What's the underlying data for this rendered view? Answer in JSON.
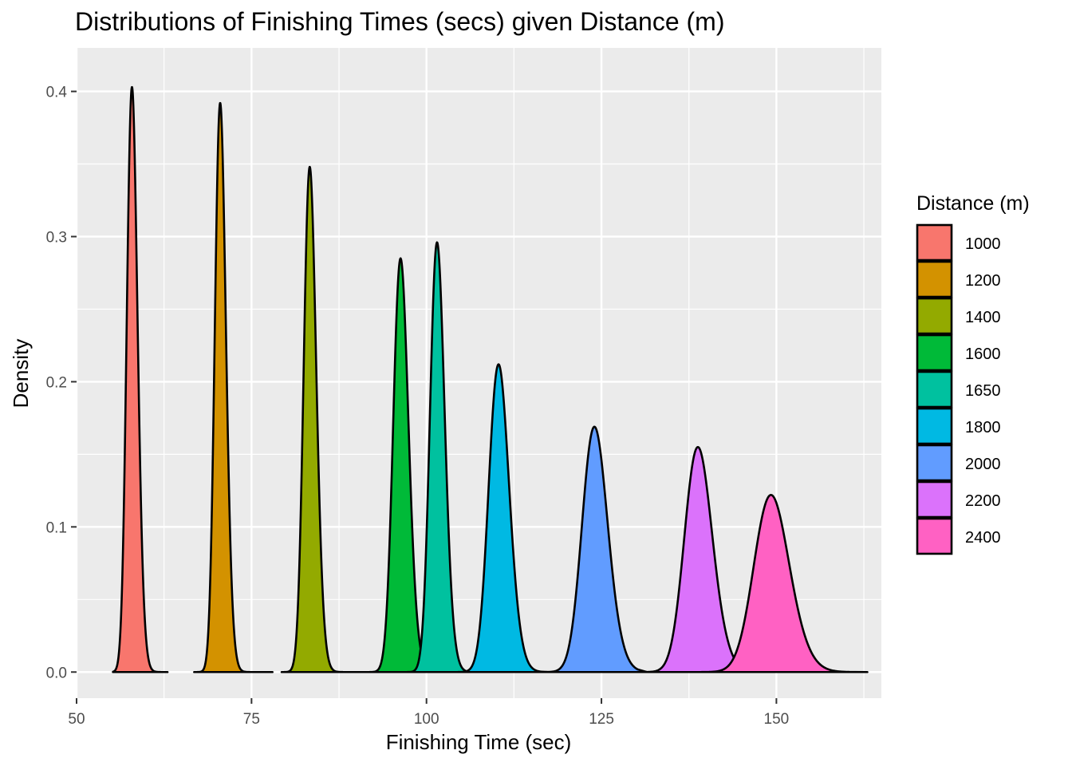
{
  "chart_data": {
    "type": "area",
    "title": "Distributions of Finishing Times (secs) given Distance (m)",
    "xlabel": "Finishing Time (sec)",
    "ylabel": "Density",
    "xlim": [
      50,
      165
    ],
    "ylim": [
      -0.018,
      0.43
    ],
    "x_ticks": [
      50,
      75,
      100,
      125,
      150
    ],
    "x_tick_labels": [
      "50",
      "75",
      "100",
      "125",
      "150"
    ],
    "y_ticks": [
      0.0,
      0.1,
      0.2,
      0.3,
      0.4
    ],
    "y_tick_labels": [
      "0.0",
      "0.1",
      "0.2",
      "0.3",
      "0.4"
    ],
    "grid": true,
    "background": "#ebebeb",
    "legend": {
      "title": "Distance (m)",
      "position": "right"
    },
    "series": [
      {
        "name": "1000",
        "color": "#F8766D",
        "peak_x": 57.9,
        "peak_density": 0.403,
        "sd": 0.99,
        "x_range": [
          55.2,
          63.0
        ]
      },
      {
        "name": "1200",
        "color": "#D39200",
        "peak_x": 70.5,
        "peak_density": 0.392,
        "sd": 1.02,
        "x_range": [
          66.8,
          78.0
        ]
      },
      {
        "name": "1400",
        "color": "#93AA00",
        "peak_x": 83.3,
        "peak_density": 0.348,
        "sd": 1.15,
        "x_range": [
          79.3,
          92.0
        ]
      },
      {
        "name": "1600",
        "color": "#00BA38",
        "peak_x": 96.3,
        "peak_density": 0.285,
        "sd": 1.4,
        "x_range": [
          91.5,
          105.5
        ]
      },
      {
        "name": "1650",
        "color": "#00C19F",
        "peak_x": 101.5,
        "peak_density": 0.296,
        "sd": 1.35,
        "x_range": [
          96.5,
          108.0
        ]
      },
      {
        "name": "1800",
        "color": "#00B9E3",
        "peak_x": 110.3,
        "peak_density": 0.212,
        "sd": 1.88,
        "x_range": [
          104.5,
          117.5
        ]
      },
      {
        "name": "2000",
        "color": "#619CFF",
        "peak_x": 124.0,
        "peak_density": 0.169,
        "sd": 2.36,
        "x_range": [
          117.0,
          131.5
        ]
      },
      {
        "name": "2200",
        "color": "#DB72FB",
        "peak_x": 138.8,
        "peak_density": 0.155,
        "sd": 2.57,
        "x_range": [
          131.0,
          146.5
        ]
      },
      {
        "name": "2400",
        "color": "#FF61C3",
        "peak_x": 149.2,
        "peak_density": 0.122,
        "sd": 3.27,
        "x_range": [
          139.0,
          163.0
        ]
      }
    ]
  }
}
